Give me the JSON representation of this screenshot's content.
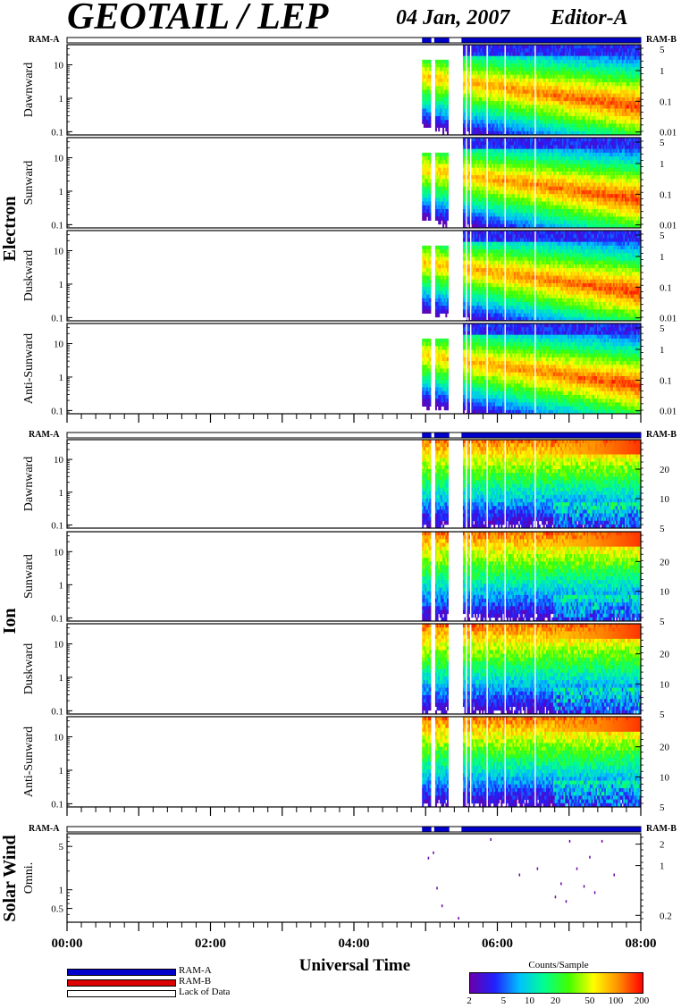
{
  "title": "GEOTAIL / LEP",
  "date": "04 Jan, 2007",
  "editor": "Editor-A",
  "ram_a_label": "RAM-A",
  "ram_b_label": "RAM-B",
  "x_axis_title": "Universal Time",
  "group_labels": {
    "electron": "Electron",
    "ion": "Ion",
    "solar_wind": "Solar Wind"
  },
  "legend": {
    "items": [
      {
        "label": "RAM-A",
        "color": "#0000cc"
      },
      {
        "label": "RAM-B",
        "color": "#dd0000"
      },
      {
        "label": "Lack of Data",
        "color": "#ffffff"
      }
    ]
  },
  "colorbar": {
    "title": "Counts/Sample",
    "ticks": [
      "2",
      "5",
      "10",
      "20",
      "50",
      "100",
      "200"
    ],
    "tick_values": [
      2,
      5,
      10,
      20,
      50,
      100,
      200
    ],
    "range": [
      2,
      200
    ],
    "colors": [
      "#6a00a8",
      "#2020ff",
      "#00c0ff",
      "#00ff90",
      "#40ff00",
      "#ffff00",
      "#ff9000",
      "#ff0000"
    ]
  },
  "chart_data": {
    "type": "heatmap",
    "x_label": "Universal Time",
    "x_ticks": [
      "00:00",
      "02:00",
      "04:00",
      "06:00",
      "08:00"
    ],
    "x_range_hours": [
      0,
      8
    ],
    "data_start_hour": 4.95,
    "data_gaps_hours": [
      [
        5.08,
        5.12
      ],
      [
        5.33,
        5.5
      ]
    ],
    "panels": [
      {
        "group": "electron",
        "label": "Dawnward",
        "left_ticks": [
          "10",
          "1",
          "0.1"
        ],
        "left_range": [
          0.08,
          40
        ],
        "right_ticks": [
          "5",
          "1",
          "0.1",
          "0.01"
        ],
        "right_scale": "log"
      },
      {
        "group": "electron",
        "label": "Sunward",
        "left_ticks": [
          "10",
          "1",
          "0.1"
        ],
        "left_range": [
          0.08,
          40
        ],
        "right_ticks": [
          "5",
          "1",
          "0.1",
          "0.01"
        ],
        "right_scale": "log"
      },
      {
        "group": "electron",
        "label": "Duskward",
        "left_ticks": [
          "10",
          "1",
          "0.1"
        ],
        "left_range": [
          0.08,
          40
        ],
        "right_ticks": [
          "5",
          "1",
          "0.1",
          "0.01"
        ],
        "right_scale": "log"
      },
      {
        "group": "electron",
        "label": "Anti-Sunward",
        "left_ticks": [
          "10",
          "1",
          "0.1"
        ],
        "left_range": [
          0.08,
          40
        ],
        "right_ticks": [
          "5",
          "1",
          "0.1",
          "0.01"
        ],
        "right_scale": "log"
      },
      {
        "group": "ion",
        "label": "Dawnward",
        "left_ticks": [
          "10",
          "1",
          "0.1"
        ],
        "left_range": [
          0.08,
          40
        ],
        "right_ticks": [
          "20",
          "10",
          "5"
        ],
        "right_scale": "linear"
      },
      {
        "group": "ion",
        "label": "Sunward",
        "left_ticks": [
          "10",
          "1",
          "0.1"
        ],
        "left_range": [
          0.08,
          40
        ],
        "right_ticks": [
          "20",
          "10",
          "5"
        ],
        "right_scale": "linear"
      },
      {
        "group": "ion",
        "label": "Duskward",
        "left_ticks": [
          "10",
          "1",
          "0.1"
        ],
        "left_range": [
          0.08,
          40
        ],
        "right_ticks": [
          "20",
          "10",
          "5"
        ],
        "right_scale": "linear"
      },
      {
        "group": "ion",
        "label": "Anti-Sunward",
        "left_ticks": [
          "10",
          "1",
          "0.1"
        ],
        "left_range": [
          0.08,
          40
        ],
        "right_ticks": [
          "20",
          "10",
          "5"
        ],
        "right_scale": "linear"
      },
      {
        "group": "solar_wind",
        "label": "Omni.",
        "left_ticks": [
          "5",
          "1",
          "0.5"
        ],
        "left_range": [
          0.3,
          8
        ],
        "right_ticks": [
          "2",
          "1",
          "0.2"
        ],
        "right_scale": "log"
      }
    ]
  }
}
